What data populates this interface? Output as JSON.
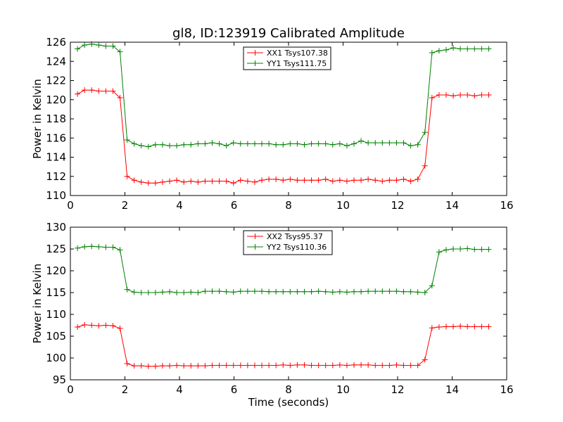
{
  "figure": {
    "title": "gl8, ID:123919 Calibrated Amplitude"
  },
  "chart_data": [
    {
      "type": "line",
      "title": "gl8, ID:123919 Calibrated Amplitude",
      "xlabel": "",
      "ylabel": "Power in Kelvin",
      "xlim": [
        0,
        16
      ],
      "ylim": [
        110,
        126
      ],
      "xticks": [
        "0",
        "2",
        "4",
        "6",
        "8",
        "10",
        "12",
        "14",
        "16"
      ],
      "yticks": [
        "110",
        "112",
        "114",
        "116",
        "118",
        "120",
        "122",
        "124",
        "126"
      ],
      "grid": false,
      "legend_position": "top-center",
      "x": [
        0.26,
        0.52,
        0.78,
        1.04,
        1.3,
        1.56,
        1.82,
        2.08,
        2.34,
        2.6,
        2.86,
        3.12,
        3.38,
        3.64,
        3.9,
        4.16,
        4.42,
        4.68,
        4.94,
        5.2,
        5.46,
        5.72,
        5.98,
        6.24,
        6.5,
        6.76,
        7.02,
        7.28,
        7.54,
        7.8,
        8.06,
        8.32,
        8.58,
        8.84,
        9.1,
        9.36,
        9.62,
        9.88,
        10.14,
        10.4,
        10.66,
        10.92,
        11.18,
        11.44,
        11.7,
        11.96,
        12.22,
        12.48,
        12.74,
        13.0,
        13.26,
        13.52,
        13.78,
        14.04,
        14.3,
        14.56,
        14.82,
        15.08,
        15.34
      ],
      "series": [
        {
          "name": "XX1 Tsys107.38",
          "color": "#ff0000",
          "values": [
            120.6,
            121.0,
            121.0,
            120.9,
            120.9,
            120.9,
            120.2,
            112.0,
            111.6,
            111.4,
            111.3,
            111.3,
            111.4,
            111.5,
            111.6,
            111.4,
            111.5,
            111.4,
            111.5,
            111.5,
            111.5,
            111.5,
            111.3,
            111.6,
            111.5,
            111.4,
            111.6,
            111.7,
            111.7,
            111.6,
            111.7,
            111.6,
            111.6,
            111.6,
            111.6,
            111.7,
            111.5,
            111.6,
            111.5,
            111.6,
            111.6,
            111.7,
            111.6,
            111.5,
            111.6,
            111.6,
            111.7,
            111.5,
            111.7,
            113.1,
            120.2,
            120.5,
            120.5,
            120.4,
            120.5,
            120.5,
            120.4,
            120.5,
            120.5
          ]
        },
        {
          "name": "YY1 Tsys111.75",
          "color": "#008000",
          "values": [
            125.3,
            125.7,
            125.8,
            125.7,
            125.6,
            125.6,
            125.0,
            115.8,
            115.4,
            115.2,
            115.1,
            115.3,
            115.3,
            115.2,
            115.2,
            115.3,
            115.3,
            115.4,
            115.4,
            115.5,
            115.4,
            115.2,
            115.5,
            115.4,
            115.4,
            115.4,
            115.4,
            115.4,
            115.3,
            115.3,
            115.4,
            115.4,
            115.3,
            115.4,
            115.4,
            115.4,
            115.3,
            115.4,
            115.2,
            115.4,
            115.7,
            115.5,
            115.5,
            115.5,
            115.5,
            115.5,
            115.5,
            115.2,
            115.3,
            116.6,
            124.9,
            125.1,
            125.2,
            125.4,
            125.3,
            125.3,
            125.3,
            125.3,
            125.3
          ]
        }
      ]
    },
    {
      "type": "line",
      "title": "",
      "xlabel": "Time (seconds)",
      "ylabel": "Power in Kelvin",
      "xlim": [
        0,
        16
      ],
      "ylim": [
        95,
        130
      ],
      "xticks": [
        "0",
        "2",
        "4",
        "6",
        "8",
        "10",
        "12",
        "14",
        "16"
      ],
      "yticks": [
        "95",
        "100",
        "105",
        "110",
        "115",
        "120",
        "125",
        "130"
      ],
      "grid": false,
      "legend_position": "top-center",
      "x": [
        0.26,
        0.52,
        0.78,
        1.04,
        1.3,
        1.56,
        1.82,
        2.08,
        2.34,
        2.6,
        2.86,
        3.12,
        3.38,
        3.64,
        3.9,
        4.16,
        4.42,
        4.68,
        4.94,
        5.2,
        5.46,
        5.72,
        5.98,
        6.24,
        6.5,
        6.76,
        7.02,
        7.28,
        7.54,
        7.8,
        8.06,
        8.32,
        8.58,
        8.84,
        9.1,
        9.36,
        9.62,
        9.88,
        10.14,
        10.4,
        10.66,
        10.92,
        11.18,
        11.44,
        11.7,
        11.96,
        12.22,
        12.48,
        12.74,
        13.0,
        13.26,
        13.52,
        13.78,
        14.04,
        14.3,
        14.56,
        14.82,
        15.08,
        15.34
      ],
      "series": [
        {
          "name": "XX2 Tsys95.37",
          "color": "#ff0000",
          "values": [
            107.1,
            107.6,
            107.5,
            107.4,
            107.5,
            107.4,
            106.8,
            98.7,
            98.2,
            98.2,
            98.1,
            98.1,
            98.2,
            98.2,
            98.3,
            98.2,
            98.2,
            98.2,
            98.2,
            98.3,
            98.3,
            98.3,
            98.3,
            98.3,
            98.3,
            98.3,
            98.3,
            98.3,
            98.3,
            98.4,
            98.3,
            98.4,
            98.4,
            98.3,
            98.3,
            98.3,
            98.3,
            98.4,
            98.3,
            98.4,
            98.4,
            98.4,
            98.3,
            98.3,
            98.3,
            98.4,
            98.3,
            98.3,
            98.3,
            99.6,
            106.9,
            107.1,
            107.2,
            107.2,
            107.3,
            107.2,
            107.2,
            107.2,
            107.2
          ]
        },
        {
          "name": "YY2 Tsys110.36",
          "color": "#008000",
          "values": [
            125.2,
            125.5,
            125.6,
            125.5,
            125.4,
            125.4,
            124.8,
            115.7,
            115.1,
            115.0,
            115.0,
            115.0,
            115.1,
            115.2,
            115.0,
            115.0,
            115.1,
            115.0,
            115.3,
            115.3,
            115.3,
            115.2,
            115.1,
            115.3,
            115.3,
            115.3,
            115.3,
            115.2,
            115.2,
            115.2,
            115.2,
            115.2,
            115.2,
            115.2,
            115.3,
            115.2,
            115.1,
            115.2,
            115.1,
            115.2,
            115.2,
            115.3,
            115.3,
            115.3,
            115.3,
            115.3,
            115.2,
            115.2,
            115.1,
            115.0,
            116.6,
            124.3,
            124.8,
            125.0,
            125.0,
            125.1,
            124.9,
            124.9,
            124.9
          ]
        }
      ]
    }
  ]
}
